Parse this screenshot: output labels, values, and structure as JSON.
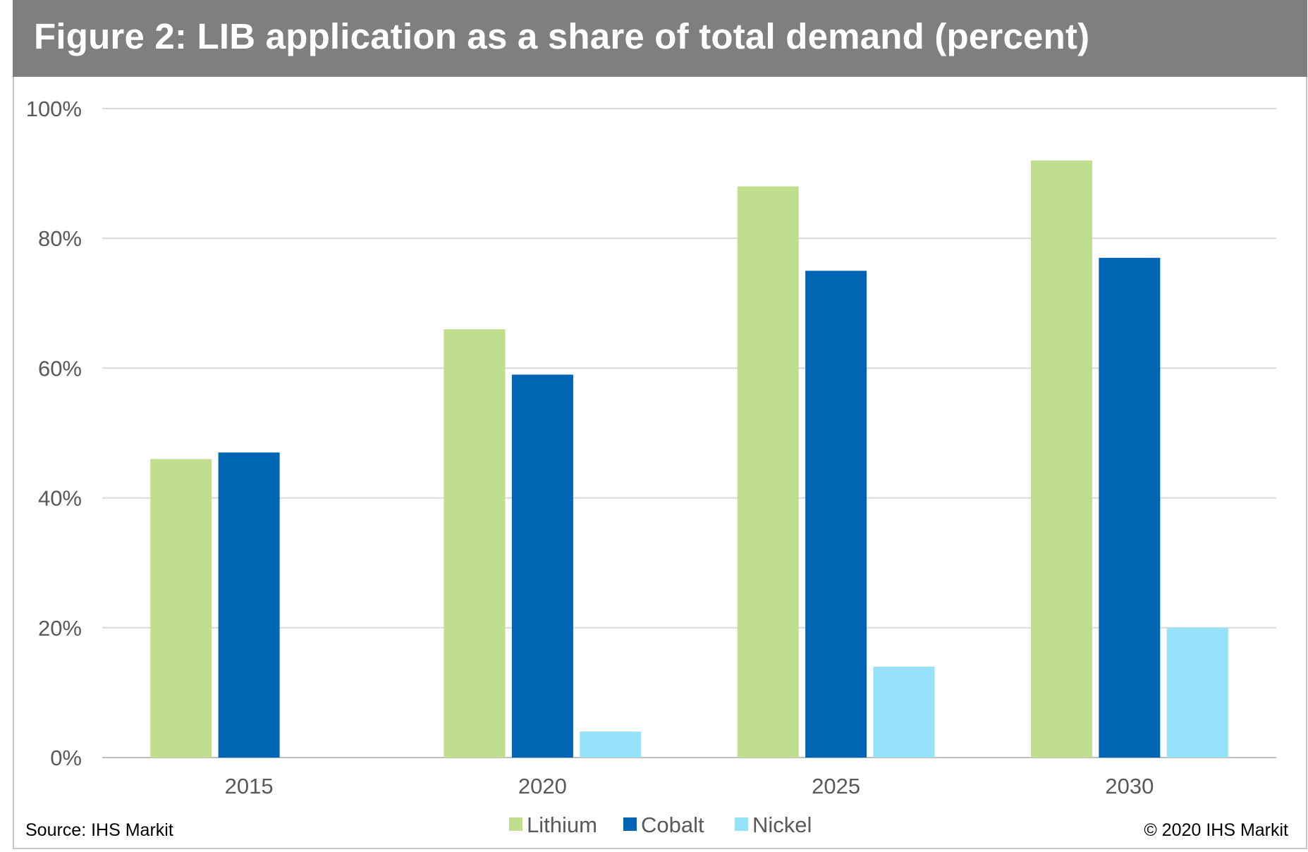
{
  "title": "Figure 2: LIB application as a share of total demand (percent)",
  "source": "Source: IHS Markit",
  "copyright": "© 2020 IHS Markit",
  "chart_data": {
    "type": "bar",
    "title": "Figure 2: LIB application as a share of total demand (percent)",
    "categories": [
      "2015",
      "2020",
      "2025",
      "2030"
    ],
    "series": [
      {
        "name": "Lithium",
        "color": "#bfdf8f",
        "values": [
          46,
          66,
          88,
          92
        ]
      },
      {
        "name": "Cobalt",
        "color": "#0066b3",
        "values": [
          47,
          59,
          75,
          77
        ]
      },
      {
        "name": "Nickel",
        "color": "#96e2fb",
        "values": [
          null,
          4,
          14,
          20
        ]
      }
    ],
    "y_ticks": [
      "0%",
      "20%",
      "40%",
      "60%",
      "80%",
      "100%"
    ],
    "ylim": [
      0,
      100
    ],
    "grid": true,
    "legend": "bottom-center",
    "xlabel": "",
    "ylabel": ""
  }
}
